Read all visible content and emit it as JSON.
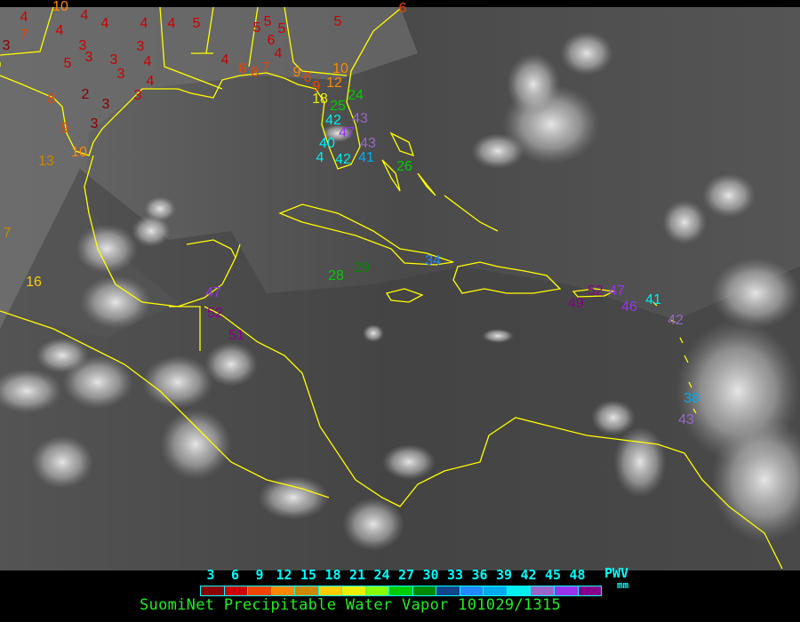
{
  "legend": {
    "ticks": [
      "3",
      "6",
      "9",
      "12",
      "15",
      "18",
      "21",
      "24",
      "27",
      "30",
      "33",
      "36",
      "39",
      "42",
      "45",
      "48"
    ],
    "unit_label": "PWV",
    "unit": "mm",
    "swatch_colors": [
      "#8b0000",
      "#cc0000",
      "#ee4400",
      "#ff8800",
      "#cc8800",
      "#ffcc00",
      "#eeee00",
      "#88ff00",
      "#00cc00",
      "#008800",
      "#114488",
      "#2288ff",
      "#00aaee",
      "#00eeee",
      "#9966cc",
      "#9933ee",
      "#880088"
    ],
    "title": "SuomiNet Precipitable Water Vapor 101029/1315"
  },
  "colors": {
    "coastline": "#ffff00",
    "background": "#4a4a4a",
    "cloud": "#e8e8e8"
  },
  "stations": [
    {
      "v": "4",
      "c": "#cc0000"
    },
    {
      "v": "7",
      "c": "#ee4400"
    },
    {
      "v": "3",
      "c": "#8b0000"
    },
    {
      "v": "4",
      "c": "#cc0000"
    },
    {
      "v": "4",
      "c": "#cc0000"
    },
    {
      "v": "4",
      "c": "#cc0000"
    },
    {
      "v": "4",
      "c": "#cc0000"
    },
    {
      "v": "4",
      "c": "#cc0000"
    },
    {
      "v": "5",
      "c": "#cc0000"
    },
    {
      "v": "3",
      "c": "#cc0000"
    },
    {
      "v": "3",
      "c": "#cc0000"
    },
    {
      "v": "5",
      "c": "#cc0000"
    },
    {
      "v": "3",
      "c": "#cc0000"
    },
    {
      "v": "3",
      "c": "#cc0000"
    },
    {
      "v": "4",
      "c": "#cc0000"
    },
    {
      "v": "3",
      "c": "#cc0000"
    },
    {
      "v": "4",
      "c": "#cc0000"
    },
    {
      "v": "2",
      "c": "#8b0000"
    },
    {
      "v": "3",
      "c": "#8b0000"
    },
    {
      "v": "3",
      "c": "#cc0000"
    },
    {
      "v": "8",
      "c": "#ee4400"
    },
    {
      "v": "3",
      "c": "#8b0000"
    },
    {
      "v": "9",
      "c": "#ee4400"
    },
    {
      "v": "10",
      "c": "#ff8800"
    },
    {
      "v": "13",
      "c": "#cc8800"
    },
    {
      "v": "4",
      "c": "#cc0000"
    },
    {
      "v": "5",
      "c": "#cc0000"
    },
    {
      "v": "5",
      "c": "#cc0000"
    },
    {
      "v": "5",
      "c": "#cc0000"
    },
    {
      "v": "6",
      "c": "#cc0000"
    },
    {
      "v": "4",
      "c": "#cc0000"
    },
    {
      "v": "5",
      "c": "#cc0000"
    },
    {
      "v": "6",
      "c": "#ee4400"
    },
    {
      "v": "6",
      "c": "#ee4400"
    },
    {
      "v": "8",
      "c": "#ee4400"
    },
    {
      "v": "7",
      "c": "#ee4400"
    },
    {
      "v": "9",
      "c": "#ff8800"
    },
    {
      "v": "6",
      "c": "#ee4400"
    },
    {
      "v": "9",
      "c": "#ee4400"
    },
    {
      "v": "12",
      "c": "#ff8800"
    },
    {
      "v": "10",
      "c": "#ff8800"
    },
    {
      "v": "18",
      "c": "#eeee00"
    },
    {
      "v": "24",
      "c": "#00cc00"
    },
    {
      "v": "25",
      "c": "#00cc00"
    },
    {
      "v": "42",
      "c": "#00eeee"
    },
    {
      "v": "43",
      "c": "#9966cc"
    },
    {
      "v": "47",
      "c": "#9933ee"
    },
    {
      "v": "43",
      "c": "#9966cc"
    },
    {
      "v": "40",
      "c": "#00eeee"
    },
    {
      "v": "4",
      "c": "#00eeee"
    },
    {
      "v": "42",
      "c": "#00eeee"
    },
    {
      "v": "41",
      "c": "#00aaee"
    },
    {
      "v": "26",
      "c": "#00cc00"
    },
    {
      "v": "10",
      "c": "#ff8800"
    },
    {
      "v": "7",
      "c": "#cc8800"
    },
    {
      "v": "16",
      "c": "#ffcc00"
    },
    {
      "v": "28",
      "c": "#00cc00"
    },
    {
      "v": "29",
      "c": "#008800"
    },
    {
      "v": "34",
      "c": "#2288ff"
    },
    {
      "v": "47",
      "c": "#9933ee"
    },
    {
      "v": "52",
      "c": "#880088"
    },
    {
      "v": "51",
      "c": "#880088"
    },
    {
      "v": "49",
      "c": "#880088"
    },
    {
      "v": "52",
      "c": "#880088"
    },
    {
      "v": "47",
      "c": "#9933ee"
    },
    {
      "v": "46",
      "c": "#9933ee"
    },
    {
      "v": "41",
      "c": "#00eeee"
    },
    {
      "v": "42",
      "c": "#9966cc"
    },
    {
      "v": "38",
      "c": "#00aaee"
    },
    {
      "v": "43",
      "c": "#9966cc"
    }
  ]
}
